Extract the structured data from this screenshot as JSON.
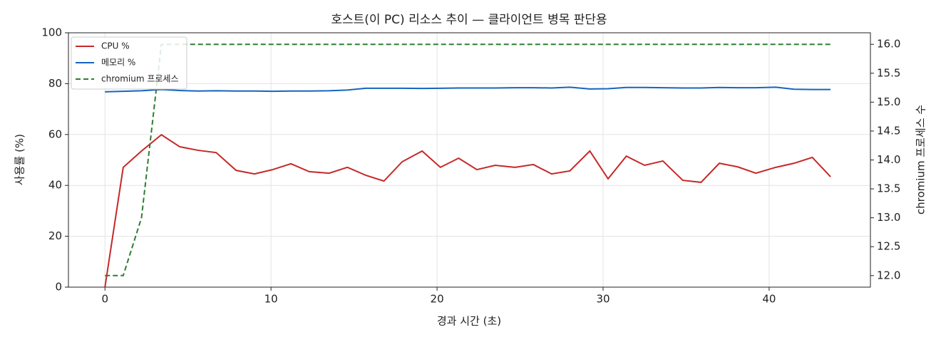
{
  "chart_data": {
    "type": "line",
    "title": "호스트(이 PC) 리소스 추이 — 클라이언트 병목 판단용",
    "xlabel": "경과 시간 (초)",
    "ylabel": "사용률 (%)",
    "y2label": "chromium 프로세스 수",
    "x": [
      0,
      1.1,
      2.2,
      3.4,
      4.5,
      5.6,
      6.7,
      7.9,
      9.0,
      10.1,
      11.2,
      12.3,
      13.5,
      14.6,
      15.7,
      16.8,
      17.9,
      19.1,
      20.2,
      21.3,
      22.4,
      23.5,
      24.7,
      25.8,
      26.9,
      28.0,
      29.2,
      30.3,
      31.4,
      32.5,
      33.6,
      34.8,
      35.9,
      37.0,
      38.1,
      39.2,
      40.4,
      41.5,
      42.6,
      43.7
    ],
    "series": [
      {
        "name": "CPU %",
        "color": "#c62828",
        "linestyle": "solid",
        "values": [
          0,
          47.1,
          53.5,
          59.9,
          55.2,
          53.8,
          52.9,
          45.9,
          44.5,
          46.2,
          48.5,
          45.4,
          44.8,
          47.1,
          44.0,
          41.7,
          49.3,
          53.5,
          47.1,
          50.7,
          46.2,
          47.9,
          47.1,
          48.2,
          44.5,
          45.7,
          53.5,
          42.6,
          51.5,
          47.9,
          49.6,
          42.0,
          41.2,
          48.7,
          47.3,
          44.8,
          47.1,
          48.7,
          51.0,
          43.4
        ]
      },
      {
        "name": "메모리 %",
        "color": "#1565c0",
        "linestyle": "solid",
        "values": [
          76.8,
          77.0,
          77.2,
          77.7,
          77.3,
          77.1,
          77.2,
          77.1,
          77.1,
          77.0,
          77.1,
          77.1,
          77.2,
          77.5,
          78.2,
          78.2,
          78.2,
          78.1,
          78.2,
          78.3,
          78.3,
          78.3,
          78.4,
          78.4,
          78.3,
          78.6,
          77.9,
          78.0,
          78.5,
          78.5,
          78.4,
          78.3,
          78.3,
          78.5,
          78.4,
          78.4,
          78.6,
          77.8,
          77.7,
          77.7
        ]
      },
      {
        "name": "chromium 프로세스",
        "color": "#2e7d32",
        "linestyle": "dashed",
        "axis": "y2",
        "values": [
          12,
          12,
          13,
          16,
          16,
          16,
          16,
          16,
          16,
          16,
          16,
          16,
          16,
          16,
          16,
          16,
          16,
          16,
          16,
          16,
          16,
          16,
          16,
          16,
          16,
          16,
          16,
          16,
          16,
          16,
          16,
          16,
          16,
          16,
          16,
          16,
          16,
          16,
          16,
          16
        ]
      }
    ],
    "xlim": [
      -2.2,
      46.1
    ],
    "xticks": [
      0,
      10,
      20,
      30,
      40
    ],
    "ylim": [
      0,
      100
    ],
    "yticks": [
      0,
      20,
      40,
      60,
      80,
      100
    ],
    "y2lim": [
      11.8,
      16.2
    ],
    "y2ticks": [
      {
        "value": 12,
        "label": "12.0"
      },
      12.5,
      {
        "value": 13,
        "label": "13.0"
      },
      13.5,
      {
        "value": 14,
        "label": "14.0"
      },
      14.5,
      {
        "value": 15,
        "label": "15.0"
      },
      15.5,
      {
        "value": 16,
        "label": "16.0"
      }
    ],
    "grid": true,
    "legend": "upper-left"
  }
}
